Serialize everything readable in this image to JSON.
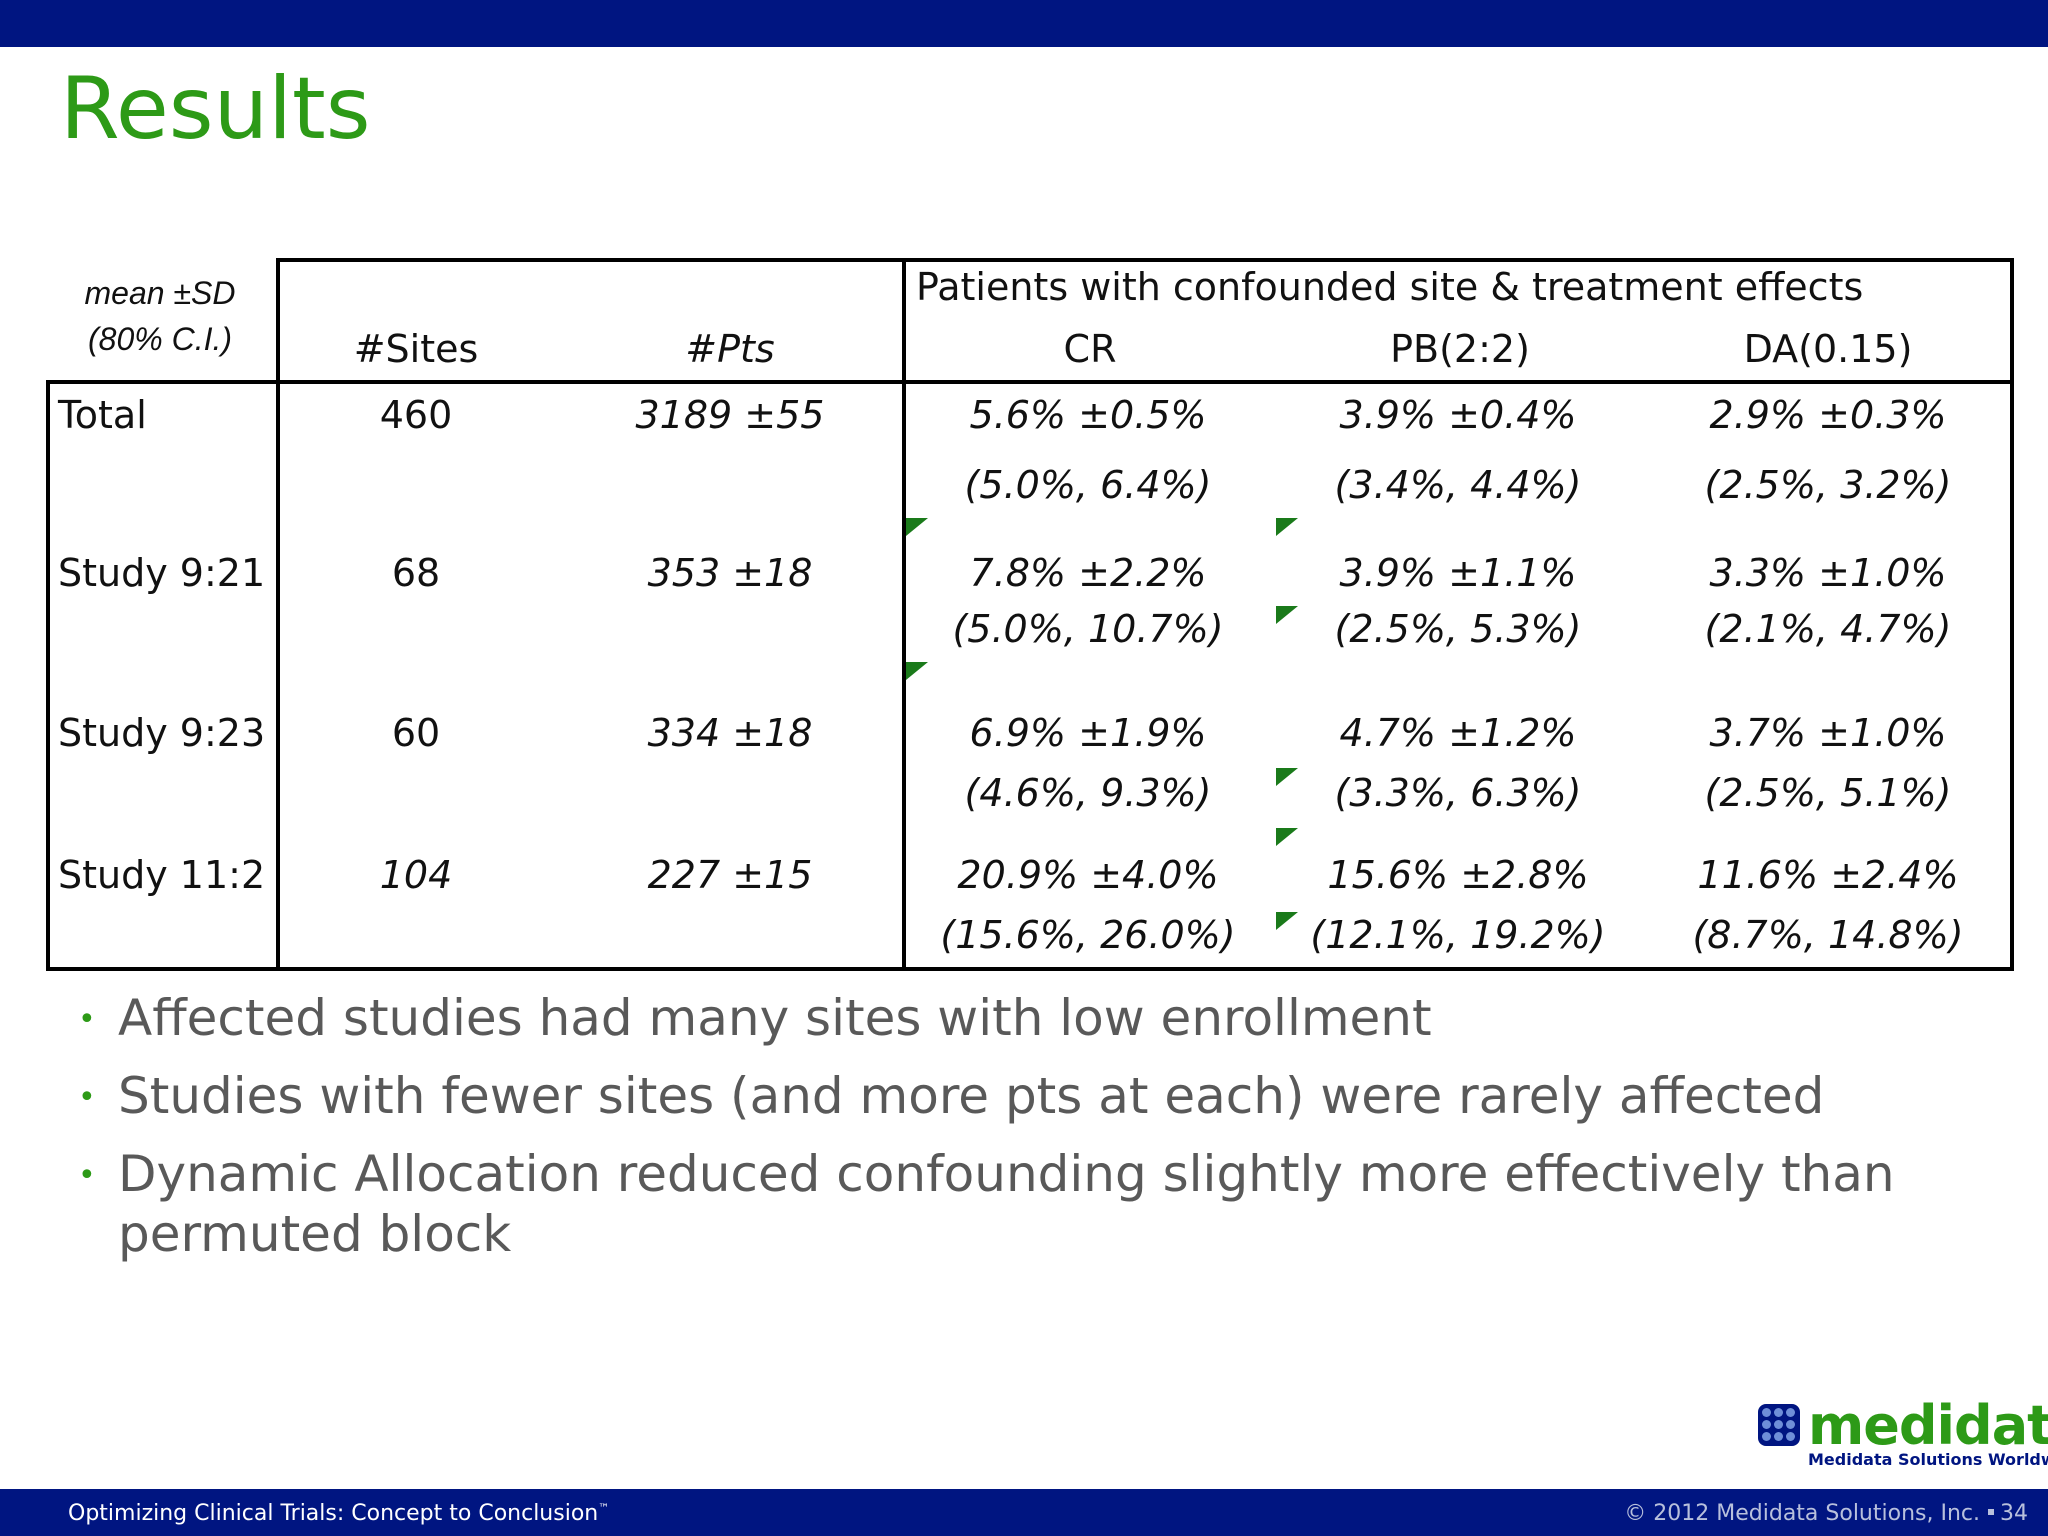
{
  "slide": {
    "title": "Results"
  },
  "table": {
    "corner_note_line1": "mean ±SD",
    "corner_note_line2": "(80% C.I.)",
    "group_header": "Patients with confounded site & treatment effects",
    "col_sites": "#Sites",
    "col_pts": "#Pts",
    "col_cr": "CR",
    "col_pb": "PB(2:2)",
    "col_da": "DA(0.15)",
    "rows": [
      {
        "label": "Total",
        "sites": "460",
        "pts": "3189 ±55",
        "cr": "5.6% ±0.5%",
        "cr_ci": "(5.0%, 6.4%)",
        "pb": "3.9% ±0.4%",
        "pb_ci": "(3.4%, 4.4%)",
        "da": "2.9% ±0.3%",
        "da_ci": "(2.5%, 3.2%)"
      },
      {
        "label": "Study 9:21",
        "sites": "68",
        "pts": "353 ±18",
        "cr": "7.8% ±2.2%",
        "cr_ci": "(5.0%, 10.7%)",
        "pb": "3.9% ±1.1%",
        "pb_ci": "(2.5%, 5.3%)",
        "da": "3.3% ±1.0%",
        "da_ci": "(2.1%, 4.7%)"
      },
      {
        "label": "Study 9:23",
        "sites": "60",
        "pts": "334 ±18",
        "cr": "6.9% ±1.9%",
        "cr_ci": "(4.6%, 9.3%)",
        "pb": "4.7% ±1.2%",
        "pb_ci": "(3.3%, 6.3%)",
        "da": "3.7% ±1.0%",
        "da_ci": "(2.5%, 5.1%)"
      },
      {
        "label": "Study 11:2",
        "sites": "104",
        "pts": "227 ±15",
        "cr": "20.9% ±4.0%",
        "cr_ci": "(15.6%, 26.0%)",
        "pb": "15.6% ±2.8%",
        "pb_ci": "(12.1%, 19.2%)",
        "da": "11.6% ±2.4%",
        "da_ci": "(8.7%, 14.8%)"
      }
    ]
  },
  "bullets": [
    "Affected studies had many sites with low enrollment",
    "Studies with fewer sites (and more pts at each) were rarely affected",
    "Dynamic Allocation reduced confounding slightly more effectively than permuted block"
  ],
  "logo": {
    "word": "medidata",
    "tagline": "Medidata Solutions Worldwide"
  },
  "footer": {
    "left": "Optimizing Clinical Trials: Concept to Conclusion",
    "left_tm": "™",
    "right": "© 2012 Medidata Solutions, Inc.",
    "page": "34"
  },
  "colors": {
    "bar": "#001581",
    "title": "#2d9a17",
    "bullet_text": "#595959"
  }
}
